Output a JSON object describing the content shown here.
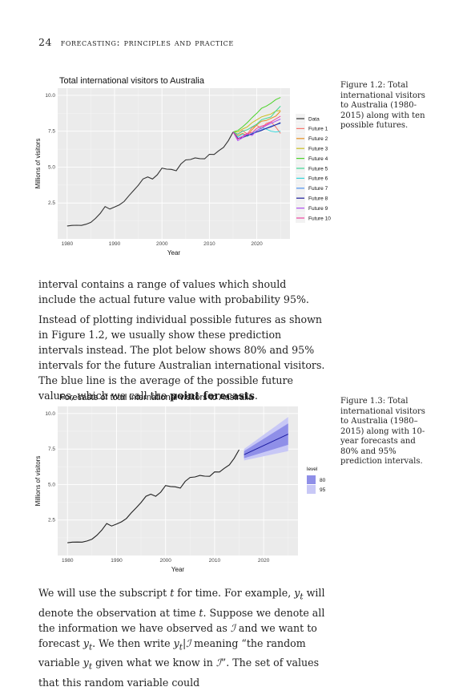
{
  "header": {
    "page_number": "24",
    "running_title": "forecasting: principles and practice"
  },
  "figure1": {
    "caption": "Figure 1.2: Total international visitors to Australia (1980-2015) along with ten possible futures.",
    "chart_data": {
      "type": "line",
      "title": "Total international visitors to Australia",
      "xlabel": "Year",
      "ylabel": "Millions of visitors",
      "xlim": [
        1978,
        2027
      ],
      "ylim": [
        0,
        10.5
      ],
      "x_ticks": [
        "1980",
        "1990",
        "2000",
        "2010",
        "2020"
      ],
      "y_ticks": [
        "2.5",
        "5.0",
        "7.5",
        "10.0"
      ],
      "legend_placement": "right",
      "series": [
        {
          "name": "Data",
          "color": "#333333",
          "x": [
            1980,
            1981,
            1982,
            1983,
            1984,
            1985,
            1986,
            1987,
            1988,
            1989,
            1990,
            1991,
            1992,
            1993,
            1994,
            1995,
            1996,
            1997,
            1998,
            1999,
            2000,
            2001,
            2002,
            2003,
            2004,
            2005,
            2006,
            2007,
            2008,
            2009,
            2010,
            2011,
            2012,
            2013,
            2014,
            2015
          ],
          "values": [
            0.9,
            0.94,
            0.95,
            0.94,
            1.02,
            1.15,
            1.43,
            1.79,
            2.25,
            2.08,
            2.22,
            2.37,
            2.6,
            3.0,
            3.36,
            3.73,
            4.17,
            4.32,
            4.17,
            4.46,
            4.93,
            4.86,
            4.84,
            4.75,
            5.22,
            5.5,
            5.53,
            5.64,
            5.59,
            5.58,
            5.89,
            5.88,
            6.15,
            6.38,
            6.85,
            7.45
          ]
        },
        {
          "name": "Future 1",
          "color": "#F8766D",
          "x": [
            2016,
            2017,
            2018,
            2019,
            2020,
            2021,
            2022,
            2023,
            2024,
            2025
          ],
          "values": [
            7.3,
            7.55,
            7.3,
            7.75,
            7.9,
            7.7,
            8.05,
            8.15,
            7.8,
            7.35
          ]
        },
        {
          "name": "Future 2",
          "color": "#E69020",
          "x": [
            2016,
            2017,
            2018,
            2019,
            2020,
            2021,
            2022,
            2023,
            2024,
            2025
          ],
          "values": [
            7.2,
            7.35,
            7.2,
            7.6,
            7.95,
            8.2,
            8.25,
            8.4,
            8.55,
            8.9
          ]
        },
        {
          "name": "Future 3",
          "color": "#C8C020",
          "x": [
            2016,
            2017,
            2018,
            2019,
            2020,
            2021,
            2022,
            2023,
            2024,
            2025
          ],
          "values": [
            7.45,
            7.65,
            7.8,
            8.1,
            8.3,
            8.5,
            8.6,
            8.7,
            8.9,
            8.95
          ]
        },
        {
          "name": "Future 4",
          "color": "#4CD32A",
          "x": [
            2016,
            2017,
            2018,
            2019,
            2020,
            2021,
            2022,
            2023,
            2024,
            2025
          ],
          "values": [
            7.55,
            7.8,
            8.1,
            8.45,
            8.75,
            9.1,
            9.25,
            9.45,
            9.7,
            9.85
          ]
        },
        {
          "name": "Future 5",
          "color": "#3FD895",
          "x": [
            2016,
            2017,
            2018,
            2019,
            2020,
            2021,
            2022,
            2023,
            2024,
            2025
          ],
          "values": [
            7.3,
            7.5,
            7.6,
            7.8,
            8.0,
            8.3,
            8.4,
            8.5,
            8.9,
            9.25
          ]
        },
        {
          "name": "Future 6",
          "color": "#35D6DA",
          "x": [
            2016,
            2017,
            2018,
            2019,
            2020,
            2021,
            2022,
            2023,
            2024,
            2025
          ],
          "values": [
            7.1,
            7.3,
            7.15,
            7.35,
            7.55,
            7.75,
            7.65,
            7.5,
            7.45,
            7.5
          ]
        },
        {
          "name": "Future 7",
          "color": "#4A90F0",
          "x": [
            2016,
            2017,
            2018,
            2019,
            2020,
            2021,
            2022,
            2023,
            2024,
            2025
          ],
          "values": [
            7.0,
            7.15,
            7.2,
            7.35,
            7.45,
            7.6,
            7.7,
            7.85,
            7.95,
            8.05
          ]
        },
        {
          "name": "Future 8",
          "color": "#1A1A9A",
          "x": [
            2016,
            2017,
            2018,
            2019,
            2020,
            2021,
            2022,
            2023,
            2024,
            2025
          ],
          "values": [
            7.0,
            7.05,
            7.2,
            7.3,
            7.45,
            7.55,
            7.7,
            7.8,
            7.95,
            8.1
          ]
        },
        {
          "name": "Future 9",
          "color": "#B04FF0",
          "x": [
            2016,
            2017,
            2018,
            2019,
            2020,
            2021,
            2022,
            2023,
            2024,
            2025
          ],
          "values": [
            6.85,
            7.05,
            7.3,
            7.2,
            7.55,
            7.7,
            7.9,
            8.05,
            8.2,
            8.35
          ]
        },
        {
          "name": "Future 10",
          "color": "#F0449E",
          "x": [
            2016,
            2017,
            2018,
            2019,
            2020,
            2021,
            2022,
            2023,
            2024,
            2025
          ],
          "values": [
            6.95,
            7.15,
            7.35,
            7.4,
            7.7,
            7.85,
            7.95,
            8.15,
            8.35,
            8.55
          ]
        }
      ]
    }
  },
  "paragraph1": "interval contains a range of values which should include the actual future value with probability 95%.",
  "paragraph2": {
    "before_bold": "Instead of plotting individual possible futures as shown in Figure 1.2, we usually show these prediction intervals instead. The plot below shows 80% and 95% intervals for the future Australian international visitors. The blue line is the average of the possible future values, which we call the ",
    "bold": "point forecasts",
    "after_bold": "."
  },
  "figure2": {
    "caption": "Figure 1.3: Total international visitors to Australia (1980–2015) along with 10-year forecasts and 80% and 95% prediction intervals.",
    "chart_data": {
      "type": "line",
      "title": "Forecasts of total international visitors to Australia",
      "xlabel": "Year",
      "ylabel": "Millions of visitors",
      "xlim": [
        1978,
        2027
      ],
      "ylim": [
        0,
        10.5
      ],
      "x_ticks": [
        "1980",
        "1990",
        "2000",
        "2010",
        "2020"
      ],
      "y_ticks": [
        "2.5",
        "5.0",
        "7.5",
        "10.0"
      ],
      "legend_title": "level",
      "legend_placement": "right",
      "legend": [
        {
          "label": "80",
          "color": "#8F8FE8"
        },
        {
          "label": "95",
          "color": "#C8C8F6"
        }
      ],
      "history": {
        "x": [
          1980,
          1981,
          1982,
          1983,
          1984,
          1985,
          1986,
          1987,
          1988,
          1989,
          1990,
          1991,
          1992,
          1993,
          1994,
          1995,
          1996,
          1997,
          1998,
          1999,
          2000,
          2001,
          2002,
          2003,
          2004,
          2005,
          2006,
          2007,
          2008,
          2009,
          2010,
          2011,
          2012,
          2013,
          2014,
          2015
        ],
        "values": [
          0.9,
          0.94,
          0.95,
          0.94,
          1.02,
          1.15,
          1.43,
          1.79,
          2.25,
          2.08,
          2.22,
          2.37,
          2.6,
          3.0,
          3.36,
          3.73,
          4.17,
          4.32,
          4.17,
          4.46,
          4.93,
          4.86,
          4.84,
          4.75,
          5.22,
          5.5,
          5.53,
          5.64,
          5.59,
          5.58,
          5.89,
          5.88,
          6.15,
          6.38,
          6.85,
          7.45
        ]
      },
      "forecast": {
        "x": [
          2016,
          2025
        ],
        "mean": [
          7.1,
          8.55
        ],
        "lo80": [
          6.85,
          7.8
        ],
        "hi80": [
          7.35,
          9.3
        ],
        "lo95": [
          6.7,
          7.35
        ],
        "hi95": [
          7.5,
          9.75
        ]
      }
    }
  },
  "paragraph3": {
    "html": "We will use the subscript <i>t</i> for time. For example, <i>y<sub>t</sub></i> will denote the observation at time <i>t</i>. Suppose we denote all the information we have observed as <i>ℐ</i> and we want to forecast <i>y<sub>t</sub></i>. We then write <i>y<sub>t</sub></i>|<i>ℐ</i> meaning “the random variable <i>y<sub>t</sub></i> given what we know in <i>ℐ</i>”. The set of values that this random variable could"
  }
}
